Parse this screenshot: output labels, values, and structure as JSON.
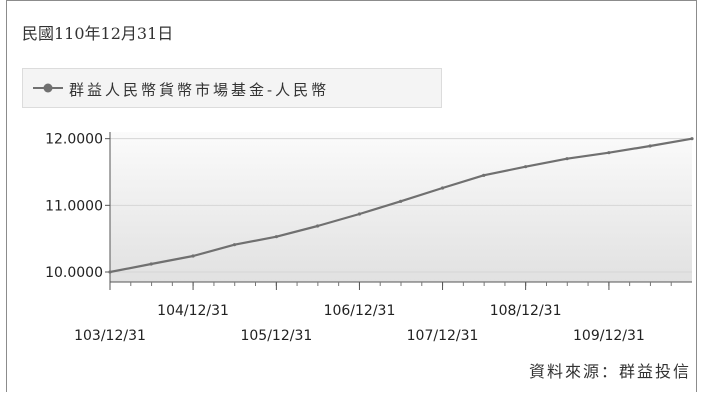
{
  "header": {
    "date_title": "民國110年12月31日"
  },
  "source_text": "資料來源：群益投信",
  "colors": {
    "line": "#707070",
    "plot_bg_top": "#fbfbfb",
    "plot_bg_bottom": "#e1e1e1",
    "grid": "#d6d6d6"
  },
  "chart_data": {
    "type": "line",
    "title": "",
    "xlabel": "",
    "ylabel": "",
    "legend": {
      "placement": "top-left",
      "entries": [
        "群益人民幣貨幣市場基金-人民幣"
      ]
    },
    "grid": true,
    "ylim": [
      9.85,
      12.1
    ],
    "y_ticks": [
      "10.0000",
      "11.0000",
      "12.0000"
    ],
    "y_tick_values": [
      10.0,
      11.0,
      12.0
    ],
    "x_ticks": [
      "103/12/31",
      "104/12/31",
      "105/12/31",
      "106/12/31",
      "107/12/31",
      "108/12/31",
      "109/12/31"
    ],
    "x_range": [
      "103/12/31",
      "110/12/31"
    ],
    "series": [
      {
        "name": "群益人民幣貨幣市場基金-人民幣",
        "x": [
          "103/12/31",
          "104/06/30",
          "104/12/31",
          "105/06/30",
          "105/12/31",
          "106/06/30",
          "106/12/31",
          "107/06/30",
          "107/12/31",
          "108/06/30",
          "108/12/31",
          "109/06/30",
          "109/12/31",
          "110/06/30",
          "110/12/31"
        ],
        "values": [
          10.0,
          10.12,
          10.24,
          10.41,
          10.53,
          10.69,
          10.87,
          11.06,
          11.26,
          11.45,
          11.58,
          11.7,
          11.79,
          11.89,
          12.0
        ]
      }
    ]
  }
}
